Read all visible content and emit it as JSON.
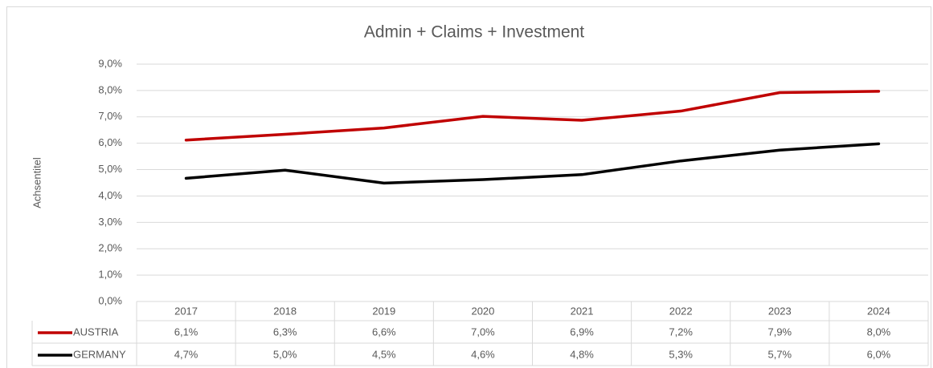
{
  "chart_data": {
    "type": "line",
    "title": "Admin + Claims + Investment",
    "y_axis_label": "Achsentitel",
    "categories": [
      "2017",
      "2018",
      "2019",
      "2020",
      "2021",
      "2022",
      "2023",
      "2024"
    ],
    "series": [
      {
        "name": "AUSTRIA",
        "color": "#c00000",
        "values": [
          6.12,
          6.34,
          6.58,
          7.02,
          6.87,
          7.22,
          7.92,
          7.97
        ],
        "value_labels": [
          "6,1%",
          "6,3%",
          "6,6%",
          "7,0%",
          "6,9%",
          "7,2%",
          "7,9%",
          "8,0%"
        ]
      },
      {
        "name": "GERMANY",
        "color": "#000000",
        "values": [
          4.67,
          4.98,
          4.49,
          4.62,
          4.81,
          5.33,
          5.74,
          5.98
        ],
        "value_labels": [
          "4,7%",
          "5,0%",
          "4,5%",
          "4,6%",
          "4,8%",
          "5,3%",
          "5,7%",
          "6,0%"
        ]
      }
    ],
    "ylim": [
      0,
      9
    ],
    "yticks": [
      {
        "value": 0,
        "label": "0,0%"
      },
      {
        "value": 1,
        "label": "1,0%"
      },
      {
        "value": 2,
        "label": "2,0%"
      },
      {
        "value": 3,
        "label": "3,0%"
      },
      {
        "value": 4,
        "label": "4,0%"
      },
      {
        "value": 5,
        "label": "5,0%"
      },
      {
        "value": 6,
        "label": "6,0%"
      },
      {
        "value": 7,
        "label": "7,0%"
      },
      {
        "value": 8,
        "label": "8,0%"
      },
      {
        "value": 9,
        "label": "9,0%"
      }
    ],
    "grid": true,
    "legend": "table"
  }
}
